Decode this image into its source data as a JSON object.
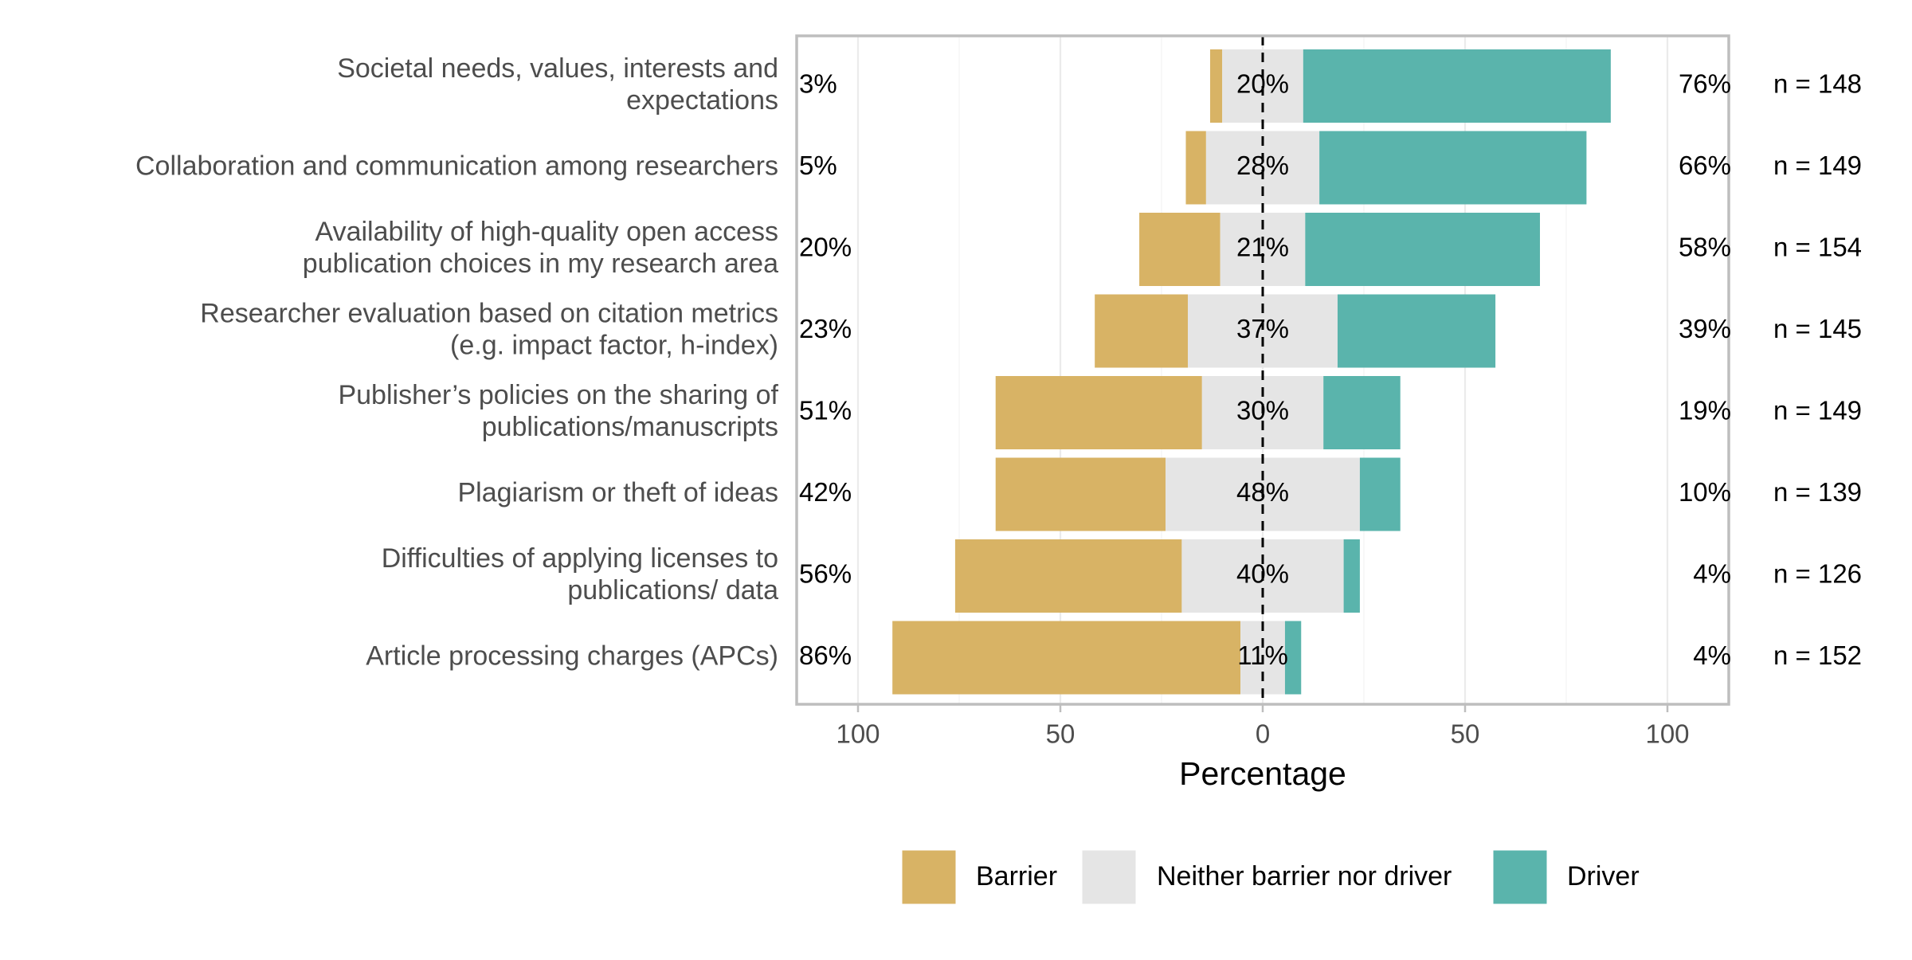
{
  "chart_data": {
    "type": "bar",
    "subtype": "diverging-stacked-likert",
    "xlabel": "Percentage",
    "xlim": [
      -115,
      115
    ],
    "x_ticks": [
      {
        "value": -100,
        "label": "100"
      },
      {
        "value": -50,
        "label": "50"
      },
      {
        "value": 0,
        "label": "0"
      },
      {
        "value": 50,
        "label": "50"
      },
      {
        "value": 100,
        "label": "100"
      }
    ],
    "categories": [
      [
        "Societal needs, values, interests and",
        "expectations"
      ],
      [
        "Collaboration and communication among researchers"
      ],
      [
        "Availability of high-quality open access",
        "publication choices in my research area"
      ],
      [
        "Researcher evaluation based on citation metrics",
        "(e.g. impact factor, h-index)"
      ],
      [
        "Publisher’s policies on the sharing of",
        "publications/manuscripts"
      ],
      [
        "Plagiarism or theft of ideas"
      ],
      [
        "Difficulties of applying licenses to",
        "publications/ data"
      ],
      [
        "Article processing charges (APCs)"
      ]
    ],
    "series": [
      {
        "name": "Barrier",
        "color": "#D8B365",
        "values": [
          3,
          5,
          20,
          23,
          51,
          42,
          56,
          86
        ]
      },
      {
        "name": "Neither barrier nor driver",
        "color": "#E5E5E5",
        "values": [
          20,
          28,
          21,
          37,
          30,
          48,
          40,
          11
        ]
      },
      {
        "name": "Driver",
        "color": "#5AB4AC",
        "values": [
          76,
          66,
          58,
          39,
          19,
          10,
          4,
          4
        ]
      }
    ],
    "left_labels": [
      "3%",
      "5%",
      "20%",
      "23%",
      "51%",
      "42%",
      "56%",
      "86%"
    ],
    "center_labels": [
      "20%",
      "28%",
      "21%",
      "37%",
      "30%",
      "48%",
      "40%",
      "11%"
    ],
    "right_labels": [
      "76%",
      "66%",
      "58%",
      "39%",
      "19%",
      "10%",
      "4%",
      "4%"
    ],
    "n_labels": [
      "n = 148",
      "n = 149",
      "n = 154",
      "n = 145",
      "n = 149",
      "n = 139",
      "n = 126",
      "n = 152"
    ],
    "legend": {
      "placement": "bottom",
      "items": [
        "Barrier",
        "Neither barrier nor driver",
        "Driver"
      ]
    },
    "zero_line": "dashed",
    "grid": true
  }
}
